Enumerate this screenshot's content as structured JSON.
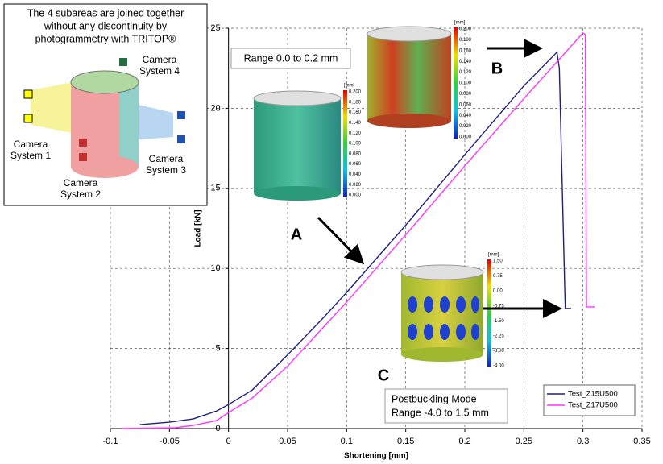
{
  "chart_data": {
    "type": "line",
    "xlabel": "Shortening [mm]",
    "ylabel": "Load [kN]",
    "xlim": [
      -0.1,
      0.35
    ],
    "ylim": [
      0,
      25
    ],
    "xticks": [
      -0.1,
      -0.05,
      0,
      0.05,
      0.1,
      0.15,
      0.2,
      0.25,
      0.3,
      0.35
    ],
    "yticks": [
      0,
      5,
      10,
      15,
      20,
      25
    ],
    "grid": true,
    "legend": "lower right",
    "series": [
      {
        "name": "Test_Z15U500",
        "color": "#1f1f80",
        "x": [
          -0.075,
          -0.05,
          -0.03,
          -0.01,
          0,
          0.02,
          0.05,
          0.08,
          0.1,
          0.15,
          0.2,
          0.25,
          0.278,
          0.28,
          0.285,
          0.29
        ],
        "values": [
          0.25,
          0.4,
          0.6,
          1.1,
          1.5,
          2.4,
          4.6,
          6.9,
          8.5,
          12.7,
          17.1,
          21.4,
          23.5,
          22.5,
          7.5,
          7.5
        ]
      },
      {
        "name": "Test_Z17U500",
        "color": "#ff33ff",
        "x": [
          -0.09,
          -0.045,
          -0.03,
          -0.01,
          0,
          0.02,
          0.05,
          0.1,
          0.15,
          0.2,
          0.25,
          0.3,
          0.302,
          0.303,
          0.31
        ],
        "values": [
          0,
          0.05,
          0.2,
          0.5,
          1,
          1.9,
          3.9,
          7.9,
          12.1,
          16.4,
          20.6,
          24.7,
          24.6,
          7.6,
          7.6
        ]
      }
    ],
    "annotations": {
      "range1": "Range 0.0 to 0.2 mm",
      "a": "A",
      "b": "B",
      "c": "C",
      "post": [
        "Postbuckling Mode",
        "Range -4.0 to 1.5 mm"
      ]
    }
  },
  "inset": {
    "title": [
      "The 4 subareas are joined together",
      "without any discontinuity by",
      "photogrammetry with TRITOP®"
    ],
    "cameras": [
      [
        "Camera",
        "System 1"
      ],
      [
        "Camera",
        "System 2"
      ],
      [
        "Camera",
        "System 3"
      ],
      [
        "Camera",
        "System 4"
      ]
    ]
  },
  "colorbars": [
    {
      "unit": "[mm]",
      "labels": [
        "0.200",
        "0.180",
        "0.160",
        "0.140",
        "0.120",
        "0.100",
        "0.080",
        "0.060",
        "0.040",
        "0.020",
        "0.000"
      ]
    },
    {
      "unit": "[mm]",
      "labels": [
        "0.200",
        "0.180",
        "0.160",
        "0.140",
        "0.120",
        "0.100",
        "0.080",
        "0.060",
        "0.040",
        "0.020",
        "0.000"
      ]
    },
    {
      "unit": "[mm]",
      "labels": [
        "1.50",
        "0.75",
        "0.00",
        "-0.75",
        "-1.50",
        "-2.25",
        "-3.00",
        "-4.00"
      ]
    }
  ]
}
